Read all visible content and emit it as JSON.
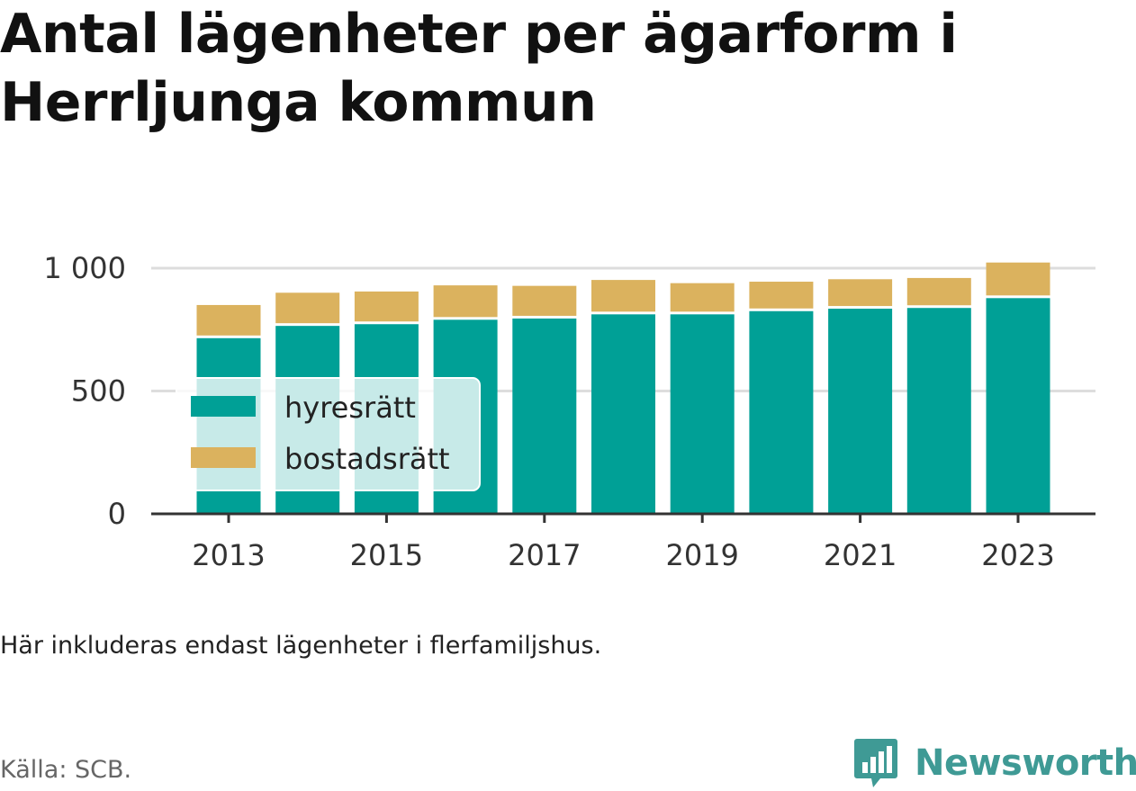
{
  "title": "Antal lägenheter per ägarform i Herrljunga kommun",
  "note": "Här inkluderas endast lägenheter i flerfamiljshus.",
  "source": "Källa: SCB.",
  "brand": {
    "name": "Newsworthy",
    "icon": "bar-chart-speech-bubble-icon",
    "color": "#3f9a95"
  },
  "chart_data": {
    "type": "bar",
    "stacked": true,
    "x": [
      2013,
      2014,
      2015,
      2016,
      2017,
      2018,
      2019,
      2020,
      2021,
      2022,
      2023
    ],
    "x_tick_labels": [
      "2013",
      "2015",
      "2017",
      "2019",
      "2021",
      "2023"
    ],
    "series": [
      {
        "name": "hyresrätt",
        "color": "#00a096",
        "values": [
          715,
          765,
          772,
          790,
          795,
          812,
          812,
          825,
          835,
          838,
          878
        ]
      },
      {
        "name": "bostadsrätt",
        "color": "#dbb25e",
        "values": [
          135,
          135,
          133,
          140,
          133,
          140,
          127,
          120,
          120,
          122,
          145
        ]
      }
    ],
    "ylim": [
      0,
      1050
    ],
    "y_ticks": [
      0,
      500,
      1000
    ],
    "y_tick_labels": [
      "0",
      "500",
      "1 000"
    ],
    "grid": true,
    "legend": "left, inside plot",
    "xlabel": "",
    "ylabel": ""
  }
}
